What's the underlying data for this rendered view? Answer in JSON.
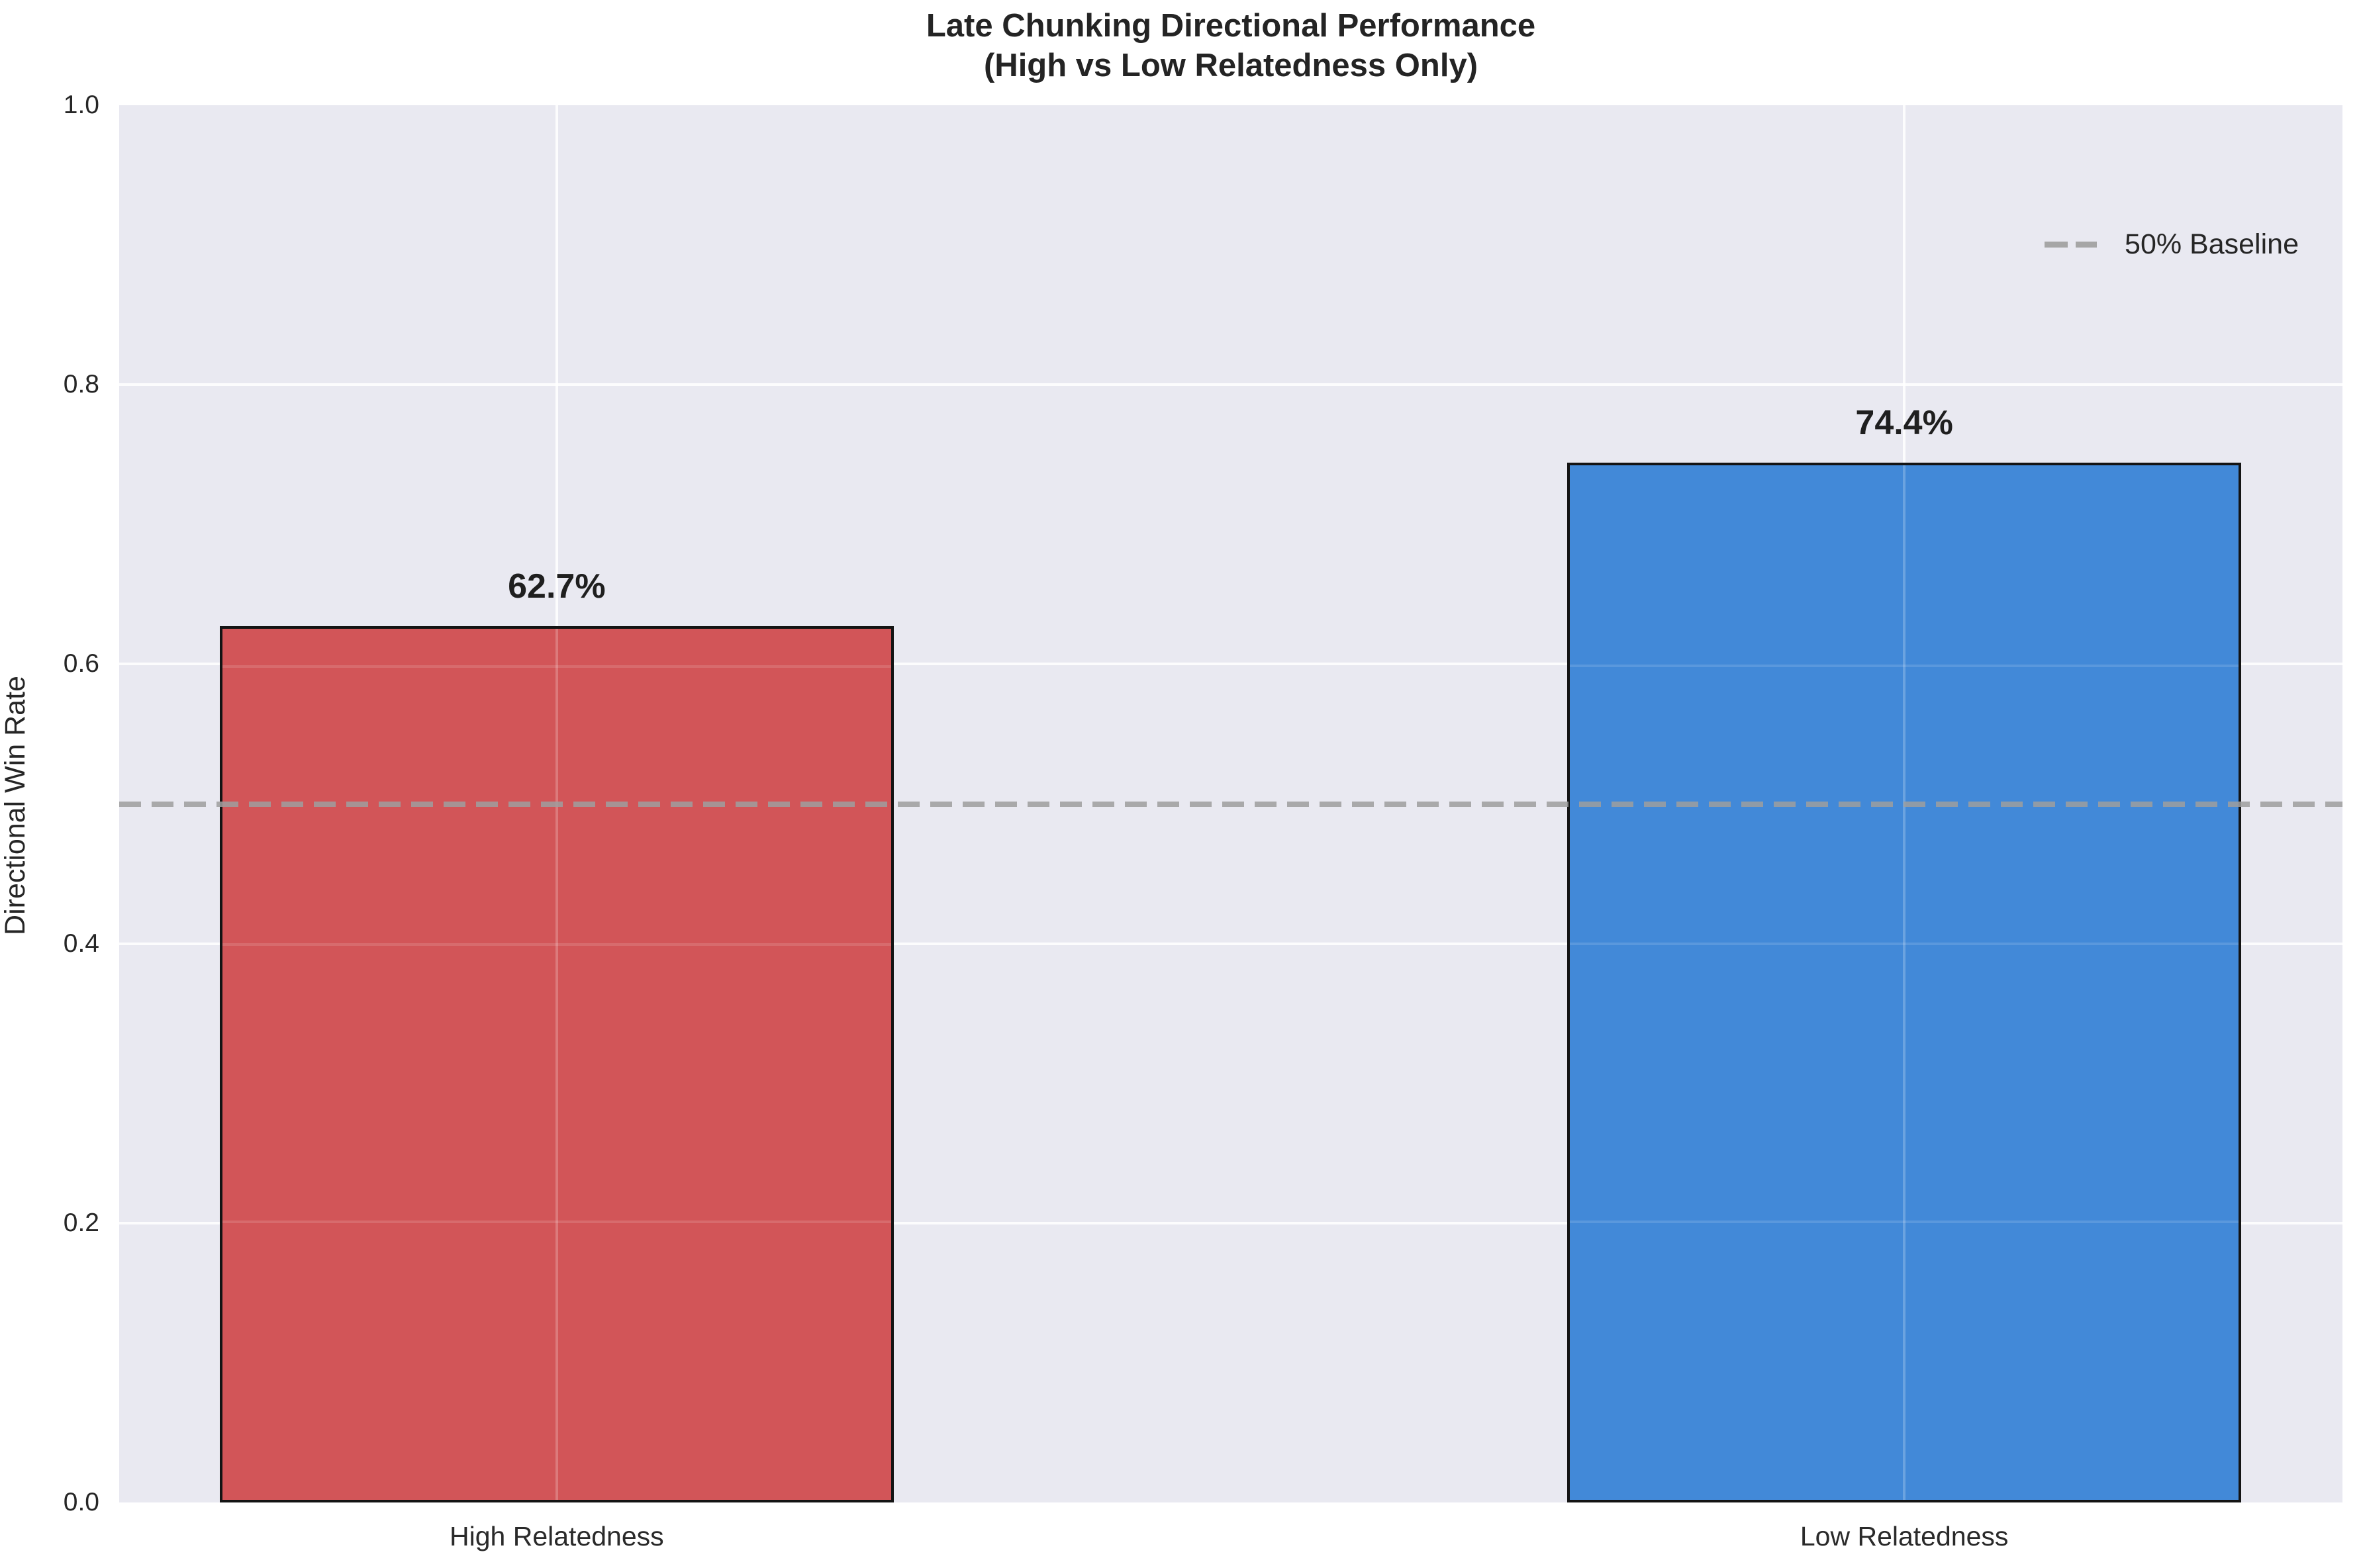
{
  "title": {
    "line1": "Late Chunking Directional Performance",
    "line2": "(High vs Low Relatedness Only)"
  },
  "axes": {
    "ylabel": "Directional Win Rate",
    "yticks": [
      "0.0",
      "0.2",
      "0.4",
      "0.6",
      "0.8",
      "1.0"
    ]
  },
  "legend": {
    "baseline_label": "50% Baseline"
  },
  "chart_data": {
    "type": "bar",
    "title": "Late Chunking Directional Performance (High vs Low Relatedness Only)",
    "categories": [
      "High Relatedness",
      "Low Relatedness"
    ],
    "values": [
      0.627,
      0.744
    ],
    "value_labels": [
      "62.7%",
      "74.4%"
    ],
    "bar_colors": [
      "#d25558",
      "#4289d8"
    ],
    "bar_edge_color": "#141414",
    "xlabel": "",
    "ylabel": "Directional Win Rate",
    "ylim": [
      0.0,
      1.0
    ],
    "ytick_values": [
      0.0,
      0.2,
      0.4,
      0.6,
      0.8,
      1.0
    ],
    "baseline": {
      "value": 0.5,
      "label": "50% Baseline",
      "color": "#9e9e9e",
      "style": "dashed"
    },
    "grid": true,
    "plot_background": "#e9e9f1",
    "legend_position": "upper right"
  }
}
